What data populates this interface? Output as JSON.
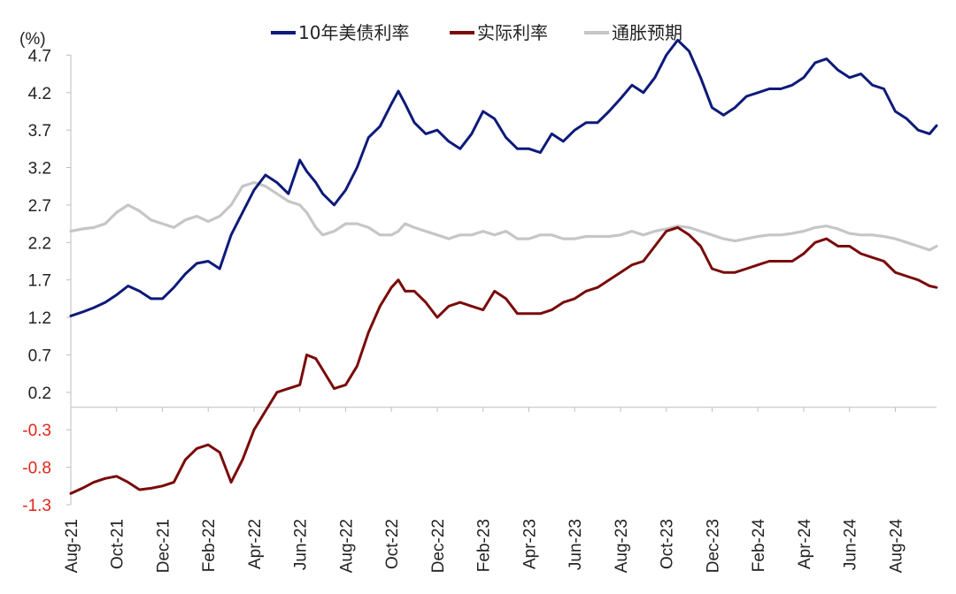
{
  "chart_data": {
    "type": "line",
    "unit_label": "(%)",
    "y_ticks": [
      4.7,
      4.2,
      3.7,
      3.2,
      2.7,
      2.2,
      1.7,
      1.2,
      0.7,
      0.2,
      -0.3,
      -0.8,
      -1.3
    ],
    "ylim": [
      -1.3,
      5.2
    ],
    "x_tick_labels": [
      "Aug-21",
      "Oct-21",
      "Dec-21",
      "Feb-22",
      "Apr-22",
      "Jun-22",
      "Aug-22",
      "Oct-22",
      "Dec-22",
      "Feb-23",
      "Apr-23",
      "Jun-23",
      "Aug-23",
      "Oct-23",
      "Dec-23",
      "Feb-24",
      "Apr-24",
      "Jun-24",
      "Aug-24"
    ],
    "x_tick_months": [
      0,
      2,
      4,
      6,
      8,
      10,
      12,
      14,
      16,
      18,
      20,
      22,
      24,
      26,
      28,
      30,
      32,
      34,
      36
    ],
    "x_range_months": [
      0,
      37.8
    ],
    "legend_position": "top-center",
    "colors": {
      "nominal": "#0d1a7a",
      "real": "#7a0a0a",
      "inflation": "#c6c6c6",
      "neg_tick": "#e0251b",
      "pos_tick": "#222222",
      "axis": "#bdbdbd"
    },
    "series": [
      {
        "name": "10年美债利率",
        "key": "nominal",
        "x": [
          0,
          0.5,
          1,
          1.5,
          2,
          2.5,
          3,
          3.5,
          4,
          4.5,
          5,
          5.5,
          6,
          6.5,
          7,
          7.5,
          8,
          8.5,
          9,
          9.5,
          10,
          10.3,
          10.7,
          11,
          11.5,
          12,
          12.5,
          13,
          13.5,
          14,
          14.3,
          14.6,
          15,
          15.5,
          16,
          16.5,
          17,
          17.5,
          18,
          18.5,
          19,
          19.5,
          20,
          20.5,
          21,
          21.5,
          22,
          22.5,
          23,
          23.5,
          24,
          24.5,
          25,
          25.5,
          26,
          26.5,
          27,
          27.5,
          28,
          28.5,
          29,
          29.5,
          30,
          30.5,
          31,
          31.5,
          32,
          32.5,
          33,
          33.5,
          34,
          34.5,
          35,
          35.5,
          36,
          36.5,
          37,
          37.5,
          37.8
        ],
        "values": [
          1.22,
          1.27,
          1.33,
          1.4,
          1.5,
          1.62,
          1.55,
          1.45,
          1.45,
          1.6,
          1.78,
          1.92,
          1.95,
          1.85,
          2.3,
          2.6,
          2.9,
          3.1,
          3.0,
          2.85,
          3.3,
          3.15,
          3.0,
          2.85,
          2.7,
          2.9,
          3.2,
          3.6,
          3.75,
          4.05,
          4.22,
          4.05,
          3.8,
          3.65,
          3.7,
          3.55,
          3.45,
          3.65,
          3.95,
          3.85,
          3.6,
          3.45,
          3.45,
          3.4,
          3.65,
          3.55,
          3.7,
          3.8,
          3.8,
          3.95,
          4.12,
          4.3,
          4.2,
          4.4,
          4.7,
          4.9,
          4.75,
          4.4,
          4.0,
          3.9,
          4.0,
          4.15,
          4.2,
          4.25,
          4.25,
          4.3,
          4.4,
          4.6,
          4.65,
          4.5,
          4.4,
          4.45,
          4.3,
          4.25,
          3.95,
          3.85,
          3.7,
          3.65,
          3.76
        ]
      },
      {
        "name": "实际利率",
        "key": "real",
        "x": [
          0,
          0.5,
          1,
          1.5,
          2,
          2.5,
          3,
          3.5,
          4,
          4.5,
          5,
          5.5,
          6,
          6.5,
          7,
          7.5,
          8,
          8.5,
          9,
          9.5,
          10,
          10.3,
          10.7,
          11,
          11.5,
          12,
          12.5,
          13,
          13.5,
          14,
          14.3,
          14.6,
          15,
          15.5,
          16,
          16.5,
          17,
          17.5,
          18,
          18.5,
          19,
          19.5,
          20,
          20.5,
          21,
          21.5,
          22,
          22.5,
          23,
          23.5,
          24,
          24.5,
          25,
          25.5,
          26,
          26.5,
          27,
          27.5,
          28,
          28.5,
          29,
          29.5,
          30,
          30.5,
          31,
          31.5,
          32,
          32.5,
          33,
          33.5,
          34,
          34.5,
          35,
          35.5,
          36,
          36.5,
          37,
          37.5,
          37.8
        ],
        "values": [
          -1.15,
          -1.08,
          -1.0,
          -0.95,
          -0.92,
          -1.0,
          -1.1,
          -1.08,
          -1.05,
          -1.0,
          -0.7,
          -0.55,
          -0.5,
          -0.6,
          -1.0,
          -0.7,
          -0.3,
          -0.05,
          0.2,
          0.25,
          0.3,
          0.7,
          0.65,
          0.5,
          0.25,
          0.3,
          0.55,
          1.0,
          1.35,
          1.6,
          1.7,
          1.55,
          1.55,
          1.4,
          1.2,
          1.35,
          1.4,
          1.35,
          1.3,
          1.55,
          1.45,
          1.25,
          1.25,
          1.25,
          1.3,
          1.4,
          1.45,
          1.55,
          1.6,
          1.7,
          1.8,
          1.9,
          1.95,
          2.15,
          2.35,
          2.4,
          2.3,
          2.15,
          1.85,
          1.8,
          1.8,
          1.85,
          1.9,
          1.95,
          1.95,
          1.95,
          2.05,
          2.2,
          2.25,
          2.15,
          2.15,
          2.05,
          2.0,
          1.95,
          1.8,
          1.75,
          1.7,
          1.62,
          1.6
        ]
      },
      {
        "name": "通胀预期",
        "key": "inflation",
        "x": [
          0,
          0.5,
          1,
          1.5,
          2,
          2.5,
          3,
          3.5,
          4,
          4.5,
          5,
          5.5,
          6,
          6.5,
          7,
          7.5,
          8,
          8.5,
          9,
          9.5,
          10,
          10.3,
          10.7,
          11,
          11.5,
          12,
          12.5,
          13,
          13.5,
          14,
          14.3,
          14.6,
          15,
          15.5,
          16,
          16.5,
          17,
          17.5,
          18,
          18.5,
          19,
          19.5,
          20,
          20.5,
          21,
          21.5,
          22,
          22.5,
          23,
          23.5,
          24,
          24.5,
          25,
          25.5,
          26,
          26.5,
          27,
          27.5,
          28,
          28.5,
          29,
          29.5,
          30,
          30.5,
          31,
          31.5,
          32,
          32.5,
          33,
          33.5,
          34,
          34.5,
          35,
          35.5,
          36,
          36.5,
          37,
          37.5,
          37.8
        ],
        "values": [
          2.35,
          2.38,
          2.4,
          2.45,
          2.6,
          2.7,
          2.62,
          2.5,
          2.45,
          2.4,
          2.5,
          2.55,
          2.48,
          2.55,
          2.7,
          2.95,
          3.0,
          2.95,
          2.85,
          2.75,
          2.7,
          2.6,
          2.4,
          2.3,
          2.35,
          2.45,
          2.45,
          2.4,
          2.3,
          2.3,
          2.35,
          2.45,
          2.4,
          2.35,
          2.3,
          2.25,
          2.3,
          2.3,
          2.35,
          2.3,
          2.35,
          2.25,
          2.25,
          2.3,
          2.3,
          2.25,
          2.25,
          2.28,
          2.28,
          2.28,
          2.3,
          2.35,
          2.3,
          2.35,
          2.38,
          2.42,
          2.4,
          2.35,
          2.3,
          2.25,
          2.22,
          2.25,
          2.28,
          2.3,
          2.3,
          2.32,
          2.35,
          2.4,
          2.42,
          2.38,
          2.32,
          2.3,
          2.3,
          2.28,
          2.25,
          2.2,
          2.15,
          2.1,
          2.15
        ]
      }
    ]
  }
}
